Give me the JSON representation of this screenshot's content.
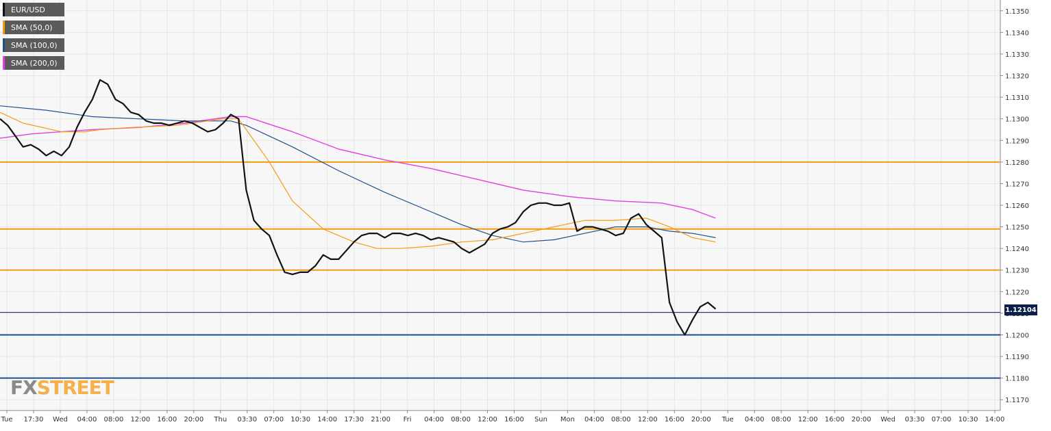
{
  "legend": [
    {
      "label": "EUR/USD",
      "color": "#111111"
    },
    {
      "label": "SMA (50,0)",
      "color": "#f39c12"
    },
    {
      "label": "SMA (100,0)",
      "color": "#1f4e8c"
    },
    {
      "label": "SMA (200,0)",
      "color": "#e040e0"
    }
  ],
  "current_price_label": "1.12104",
  "watermark": {
    "fx": "FX",
    "street": "STREET"
  },
  "colors": {
    "background": "#f7f7f7",
    "grid": "#e6e6e6",
    "resistance": "#f39c12",
    "support": "#1f4e8c",
    "current": "#0a1f4a",
    "sma50": "#f39c12",
    "sma100": "#1f4e8c",
    "sma200": "#e040e0"
  },
  "chart_data": {
    "type": "line",
    "instrument": "EUR/USD",
    "y_axis": {
      "min": 1.1165,
      "max": 1.1355,
      "side": "right",
      "ticks": [
        "1.1350",
        "1.1340",
        "1.1330",
        "1.1320",
        "1.1310",
        "1.1300",
        "1.1290",
        "1.1280",
        "1.1270",
        "1.1260",
        "1.1250",
        "1.1240",
        "1.1230",
        "1.1220",
        "1.1210",
        "1.1200",
        "1.1190",
        "1.1180",
        "1.1170"
      ]
    },
    "x_axis": {
      "ticks": [
        "Tue",
        "17:30",
        "Wed",
        "04:00",
        "08:00",
        "12:00",
        "16:00",
        "20:00",
        "Thu",
        "03:30",
        "07:00",
        "10:30",
        "14:00",
        "17:30",
        "21:00",
        "Fri",
        "04:00",
        "08:00",
        "12:00",
        "16:00",
        "Sun",
        "Mon",
        "04:00",
        "08:00",
        "12:00",
        "16:00",
        "20:00",
        "Tue",
        "04:00",
        "08:00",
        "12:00",
        "16:00",
        "20:00",
        "Wed",
        "03:30",
        "07:00",
        "10:30",
        "14:00"
      ]
    },
    "horizontal_levels": [
      {
        "value": 1.128,
        "role": "resistance"
      },
      {
        "value": 1.1249,
        "role": "resistance"
      },
      {
        "value": 1.123,
        "role": "resistance"
      },
      {
        "value": 1.12104,
        "role": "current"
      },
      {
        "value": 1.12,
        "role": "support"
      },
      {
        "value": 1.118,
        "role": "support"
      }
    ],
    "series": [
      {
        "key": "price",
        "values": [
          [
            0,
            1.13
          ],
          [
            1,
            1.1297
          ],
          [
            2,
            1.1292
          ],
          [
            3,
            1.1287
          ],
          [
            4,
            1.1288
          ],
          [
            5,
            1.1286
          ],
          [
            6,
            1.1283
          ],
          [
            7,
            1.1285
          ],
          [
            8,
            1.1283
          ],
          [
            9,
            1.1287
          ],
          [
            10,
            1.1296
          ],
          [
            11,
            1.1303
          ],
          [
            12,
            1.1309
          ],
          [
            13,
            1.1318
          ],
          [
            14,
            1.1316
          ],
          [
            15,
            1.1309
          ],
          [
            16,
            1.1307
          ],
          [
            17,
            1.1303
          ],
          [
            18,
            1.1302
          ],
          [
            19,
            1.1299
          ],
          [
            20,
            1.1298
          ],
          [
            21,
            1.1298
          ],
          [
            22,
            1.1297
          ],
          [
            23,
            1.1298
          ],
          [
            24,
            1.1299
          ],
          [
            25,
            1.1298
          ],
          [
            26,
            1.1296
          ],
          [
            27,
            1.1294
          ],
          [
            28,
            1.1295
          ],
          [
            29,
            1.1298
          ],
          [
            30,
            1.1302
          ],
          [
            31,
            1.13
          ],
          [
            32,
            1.1267
          ],
          [
            33,
            1.1253
          ],
          [
            34,
            1.1249
          ],
          [
            35,
            1.1246
          ],
          [
            36,
            1.1237
          ],
          [
            37,
            1.1229
          ],
          [
            38,
            1.1228
          ],
          [
            39,
            1.1229
          ],
          [
            40,
            1.1229
          ],
          [
            41,
            1.1232
          ],
          [
            42,
            1.1237
          ],
          [
            43,
            1.1235
          ],
          [
            44,
            1.1235
          ],
          [
            45,
            1.1239
          ],
          [
            46,
            1.1243
          ],
          [
            47,
            1.1246
          ],
          [
            48,
            1.1247
          ],
          [
            49,
            1.1247
          ],
          [
            50,
            1.1245
          ],
          [
            51,
            1.1247
          ],
          [
            52,
            1.1247
          ],
          [
            53,
            1.1246
          ],
          [
            54,
            1.1247
          ],
          [
            55,
            1.1246
          ],
          [
            56,
            1.1244
          ],
          [
            57,
            1.1245
          ],
          [
            58,
            1.1244
          ],
          [
            59,
            1.1243
          ],
          [
            60,
            1.124
          ],
          [
            61,
            1.1238
          ],
          [
            62,
            1.124
          ],
          [
            63,
            1.1242
          ],
          [
            64,
            1.1247
          ],
          [
            65,
            1.1249
          ],
          [
            66,
            1.125
          ],
          [
            67,
            1.1252
          ],
          [
            68,
            1.1257
          ],
          [
            69,
            1.126
          ],
          [
            70,
            1.1261
          ],
          [
            71,
            1.1261
          ],
          [
            72,
            1.126
          ],
          [
            73,
            1.126
          ],
          [
            74,
            1.1261
          ],
          [
            75,
            1.1248
          ],
          [
            76,
            1.125
          ],
          [
            77,
            1.125
          ],
          [
            78,
            1.1249
          ],
          [
            79,
            1.1248
          ],
          [
            80,
            1.1246
          ],
          [
            81,
            1.1247
          ],
          [
            82,
            1.1254
          ],
          [
            83,
            1.1256
          ],
          [
            84,
            1.1251
          ],
          [
            85,
            1.1248
          ],
          [
            86,
            1.1245
          ],
          [
            87,
            1.1215
          ],
          [
            88,
            1.1206
          ],
          [
            89,
            1.12
          ],
          [
            90,
            1.1207
          ],
          [
            91,
            1.1213
          ],
          [
            92,
            1.1215
          ],
          [
            93,
            1.1212
          ]
        ]
      },
      {
        "key": "sma50",
        "values": [
          [
            0,
            1.1303
          ],
          [
            3,
            1.1298
          ],
          [
            8,
            1.1294
          ],
          [
            11,
            1.1294
          ],
          [
            13,
            1.1295
          ],
          [
            17,
            1.1296
          ],
          [
            23,
            1.1297
          ],
          [
            29,
            1.13
          ],
          [
            31,
            1.13
          ],
          [
            35,
            1.128
          ],
          [
            38,
            1.1262
          ],
          [
            42,
            1.1249
          ],
          [
            46,
            1.1243
          ],
          [
            49,
            1.124
          ],
          [
            52,
            1.124
          ],
          [
            56,
            1.1241
          ],
          [
            60,
            1.1243
          ],
          [
            64,
            1.1244
          ],
          [
            68,
            1.1247
          ],
          [
            72,
            1.125
          ],
          [
            76,
            1.1253
          ],
          [
            80,
            1.1253
          ],
          [
            84,
            1.1254
          ],
          [
            87,
            1.125
          ],
          [
            90,
            1.1245
          ],
          [
            93,
            1.1243
          ]
        ]
      },
      {
        "key": "sma100",
        "values": [
          [
            0,
            1.1306
          ],
          [
            6,
            1.1304
          ],
          [
            12,
            1.1301
          ],
          [
            18,
            1.13
          ],
          [
            24,
            1.1299
          ],
          [
            30,
            1.1299
          ],
          [
            32,
            1.1297
          ],
          [
            38,
            1.1287
          ],
          [
            44,
            1.1276
          ],
          [
            50,
            1.1266
          ],
          [
            56,
            1.1257
          ],
          [
            60,
            1.1251
          ],
          [
            64,
            1.1246
          ],
          [
            68,
            1.1243
          ],
          [
            72,
            1.1244
          ],
          [
            76,
            1.1247
          ],
          [
            80,
            1.125
          ],
          [
            84,
            1.125
          ],
          [
            87,
            1.1248
          ],
          [
            90,
            1.1247
          ],
          [
            93,
            1.1245
          ]
        ]
      },
      {
        "key": "sma200",
        "values": [
          [
            0,
            1.1291
          ],
          [
            4,
            1.1293
          ],
          [
            8,
            1.1294
          ],
          [
            12,
            1.1295
          ],
          [
            18,
            1.1296
          ],
          [
            24,
            1.1298
          ],
          [
            30,
            1.1301
          ],
          [
            32,
            1.1301
          ],
          [
            38,
            1.1294
          ],
          [
            44,
            1.1286
          ],
          [
            50,
            1.1281
          ],
          [
            56,
            1.1277
          ],
          [
            62,
            1.1272
          ],
          [
            68,
            1.1267
          ],
          [
            74,
            1.1264
          ],
          [
            80,
            1.1262
          ],
          [
            86,
            1.1261
          ],
          [
            90,
            1.1258
          ],
          [
            93,
            1.1254
          ]
        ]
      }
    ]
  }
}
